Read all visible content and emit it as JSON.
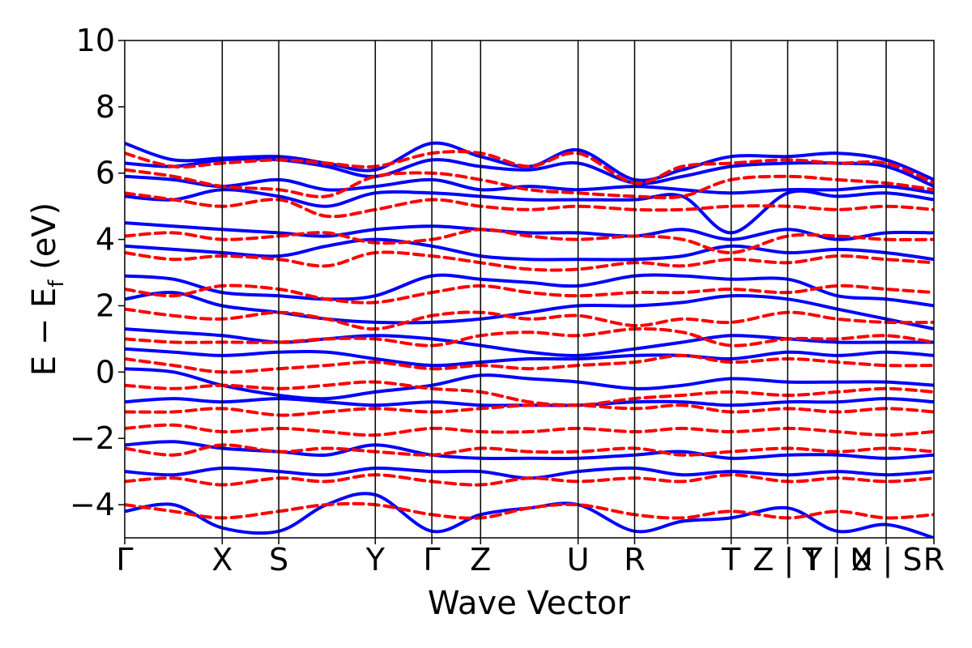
{
  "chart_data": {
    "type": "line",
    "title": "",
    "xlabel": "Wave Vector",
    "ylabel": "E − E_f (eV)",
    "ylabel_parts": {
      "prefix": "E − E",
      "subscript": "f",
      "suffix": " (eV)"
    },
    "ylim": [
      -5,
      10
    ],
    "yticks": [
      -4,
      -2,
      0,
      2,
      4,
      6,
      8,
      10
    ],
    "ytick_labels": [
      "−4",
      "−2",
      "0",
      "2",
      "4",
      "6",
      "8",
      "10"
    ],
    "xlim": [
      0,
      8.3
    ],
    "kpoints": [
      {
        "label": "Γ",
        "x": 0
      },
      {
        "label": "X",
        "x": 1.0
      },
      {
        "label": "S",
        "x": 1.58
      },
      {
        "label": "Y",
        "x": 2.57
      },
      {
        "label": "Γ",
        "x": 3.15
      },
      {
        "label": "Z",
        "x": 3.65
      },
      {
        "label": "U",
        "x": 4.65
      },
      {
        "label": "R",
        "x": 5.23
      },
      {
        "label": "T",
        "x": 6.22
      },
      {
        "label": "Z | Y",
        "x": 6.8
      },
      {
        "label": "T | X",
        "x": 7.31
      },
      {
        "label": "U | S",
        "x": 7.81
      },
      {
        "label": "R",
        "x": 8.3
      }
    ],
    "grid": false,
    "legend": "none",
    "series_styles": [
      {
        "style": "solid",
        "color": "#0000ff"
      },
      {
        "style": "dashed",
        "color": "#ff0000"
      }
    ],
    "band_samples": {
      "x": [
        0,
        0.5,
        1.0,
        1.58,
        2.07,
        2.57,
        3.15,
        3.65,
        4.15,
        4.65,
        5.23,
        5.72,
        6.22,
        6.8,
        7.31,
        7.81,
        8.3
      ],
      "series": [
        {
          "values": [
            [
              6.9,
              6.4,
              6.45,
              6.5,
              6.3,
              6.1,
              6.9,
              6.5,
              6.2,
              6.7,
              5.8,
              6.1,
              6.5,
              6.5,
              6.6,
              6.4,
              5.8
            ],
            [
              6.3,
              6.2,
              6.4,
              6.4,
              6.2,
              5.9,
              6.4,
              6.2,
              6.1,
              6.3,
              5.7,
              5.9,
              6.2,
              6.3,
              6.3,
              6.2,
              5.6
            ],
            [
              5.9,
              5.8,
              5.6,
              5.8,
              5.5,
              5.6,
              5.8,
              5.5,
              5.6,
              5.5,
              5.6,
              5.5,
              5.4,
              5.5,
              5.5,
              5.6,
              5.4
            ],
            [
              5.3,
              5.2,
              5.5,
              5.3,
              5.0,
              5.4,
              5.4,
              5.3,
              5.2,
              5.2,
              5.2,
              5.3,
              4.2,
              5.4,
              5.3,
              5.4,
              5.2
            ],
            [
              4.5,
              4.4,
              4.3,
              4.2,
              4.1,
              4.3,
              4.4,
              4.3,
              4.2,
              4.2,
              4.1,
              4.3,
              4.0,
              4.3,
              4.0,
              4.2,
              4.2
            ],
            [
              3.8,
              3.7,
              3.6,
              3.5,
              3.8,
              4.0,
              3.8,
              3.5,
              3.4,
              3.4,
              3.4,
              3.5,
              3.8,
              3.6,
              3.7,
              3.6,
              3.4
            ],
            [
              2.9,
              2.8,
              2.4,
              2.3,
              2.2,
              2.3,
              2.9,
              2.8,
              2.7,
              2.6,
              2.9,
              2.9,
              2.8,
              2.8,
              2.3,
              2.2,
              2.0
            ],
            [
              2.2,
              2.4,
              2.0,
              1.8,
              1.6,
              1.5,
              1.5,
              1.6,
              1.8,
              2.0,
              2.0,
              2.1,
              2.3,
              2.2,
              1.9,
              1.6,
              1.3
            ],
            [
              1.3,
              1.2,
              1.1,
              0.9,
              1.0,
              1.1,
              1.0,
              0.8,
              0.6,
              0.5,
              0.7,
              0.9,
              1.1,
              1.0,
              0.9,
              0.9,
              0.9
            ],
            [
              0.7,
              0.6,
              0.5,
              0.6,
              0.6,
              0.4,
              0.2,
              0.3,
              0.4,
              0.4,
              0.5,
              0.5,
              0.4,
              0.6,
              0.5,
              0.6,
              0.5
            ],
            [
              0.1,
              0.0,
              -0.4,
              -0.7,
              -0.8,
              -0.6,
              -0.4,
              -0.1,
              -0.2,
              -0.3,
              -0.5,
              -0.4,
              -0.2,
              -0.3,
              -0.3,
              -0.3,
              -0.4
            ],
            [
              -0.9,
              -0.8,
              -0.9,
              -0.8,
              -0.9,
              -1.0,
              -0.9,
              -1.0,
              -1.0,
              -1.0,
              -0.9,
              -0.9,
              -1.0,
              -0.9,
              -0.9,
              -0.8,
              -0.9
            ],
            [
              -2.2,
              -2.1,
              -2.3,
              -2.4,
              -2.5,
              -2.2,
              -2.5,
              -2.6,
              -2.6,
              -2.6,
              -2.5,
              -2.4,
              -2.6,
              -2.5,
              -2.5,
              -2.6,
              -2.5
            ],
            [
              -3.0,
              -3.1,
              -2.9,
              -3.0,
              -3.1,
              -2.9,
              -3.0,
              -3.0,
              -3.2,
              -3.0,
              -2.9,
              -3.1,
              -3.0,
              -3.1,
              -3.0,
              -3.1,
              -3.0
            ],
            [
              -4.2,
              -4.0,
              -4.7,
              -4.8,
              -4.0,
              -3.7,
              -4.8,
              -4.3,
              -4.1,
              -4.0,
              -4.8,
              -4.5,
              -4.4,
              -4.1,
              -4.8,
              -4.6,
              -5.0
            ]
          ]
        },
        {
          "values": [
            [
              6.6,
              6.2,
              6.3,
              6.4,
              6.3,
              6.2,
              6.6,
              6.6,
              6.2,
              6.6,
              5.7,
              6.2,
              6.3,
              6.4,
              6.3,
              6.3,
              5.7
            ],
            [
              6.1,
              5.9,
              5.6,
              5.5,
              5.3,
              5.9,
              6.0,
              5.8,
              5.5,
              5.4,
              5.3,
              5.3,
              5.8,
              5.9,
              5.8,
              5.7,
              5.5
            ],
            [
              5.4,
              5.2,
              5.0,
              5.2,
              4.7,
              4.9,
              5.2,
              5.0,
              4.9,
              5.0,
              4.9,
              4.9,
              5.0,
              5.0,
              4.9,
              5.0,
              4.9
            ],
            [
              4.1,
              4.2,
              4.0,
              4.1,
              4.2,
              3.9,
              4.0,
              4.3,
              4.1,
              4.0,
              4.1,
              4.0,
              3.6,
              4.1,
              4.1,
              4.0,
              4.0
            ],
            [
              3.6,
              3.4,
              3.5,
              3.4,
              3.2,
              3.6,
              3.5,
              3.3,
              3.1,
              3.1,
              3.3,
              3.2,
              3.4,
              3.3,
              3.5,
              3.4,
              3.3
            ],
            [
              2.5,
              2.3,
              2.6,
              2.5,
              2.2,
              2.1,
              2.4,
              2.6,
              2.4,
              2.3,
              2.4,
              2.4,
              2.5,
              2.4,
              2.6,
              2.5,
              2.4
            ],
            [
              1.9,
              1.7,
              1.6,
              1.8,
              1.6,
              1.3,
              1.7,
              1.8,
              1.6,
              1.7,
              1.4,
              1.6,
              1.5,
              1.8,
              1.6,
              1.5,
              1.5
            ],
            [
              1.0,
              0.9,
              0.9,
              0.9,
              1.0,
              1.0,
              0.8,
              1.1,
              1.2,
              1.1,
              1.3,
              1.2,
              0.8,
              1.0,
              1.0,
              1.1,
              0.9
            ],
            [
              0.4,
              0.2,
              0.0,
              0.1,
              0.2,
              0.3,
              0.1,
              0.2,
              0.1,
              0.2,
              0.3,
              0.5,
              0.3,
              0.4,
              0.3,
              0.2,
              0.2
            ],
            [
              -0.4,
              -0.5,
              -0.4,
              -0.5,
              -0.4,
              -0.3,
              -0.5,
              -0.6,
              -0.9,
              -1.0,
              -0.8,
              -0.7,
              -0.6,
              -0.7,
              -0.6,
              -0.5,
              -0.6
            ],
            [
              -1.2,
              -1.2,
              -1.1,
              -1.3,
              -1.2,
              -1.1,
              -1.2,
              -1.1,
              -1.0,
              -1.0,
              -1.1,
              -1.0,
              -1.2,
              -1.1,
              -1.2,
              -1.1,
              -1.2
            ],
            [
              -1.7,
              -1.6,
              -1.8,
              -1.7,
              -1.8,
              -1.9,
              -1.7,
              -1.8,
              -1.8,
              -1.7,
              -1.8,
              -1.7,
              -1.8,
              -1.7,
              -1.8,
              -1.9,
              -1.8
            ],
            [
              -2.3,
              -2.5,
              -2.2,
              -2.4,
              -2.3,
              -2.4,
              -2.5,
              -2.3,
              -2.4,
              -2.4,
              -2.3,
              -2.5,
              -2.4,
              -2.3,
              -2.4,
              -2.3,
              -2.4
            ],
            [
              -3.3,
              -3.2,
              -3.4,
              -3.2,
              -3.3,
              -3.1,
              -3.3,
              -3.4,
              -3.2,
              -3.3,
              -3.2,
              -3.3,
              -3.1,
              -3.3,
              -3.2,
              -3.3,
              -3.2
            ],
            [
              -4.0,
              -4.2,
              -4.4,
              -4.2,
              -4.0,
              -4.0,
              -4.3,
              -4.4,
              -4.1,
              -4.0,
              -4.3,
              -4.4,
              -4.2,
              -4.4,
              -4.2,
              -4.4,
              -4.3
            ]
          ]
        }
      ]
    }
  }
}
